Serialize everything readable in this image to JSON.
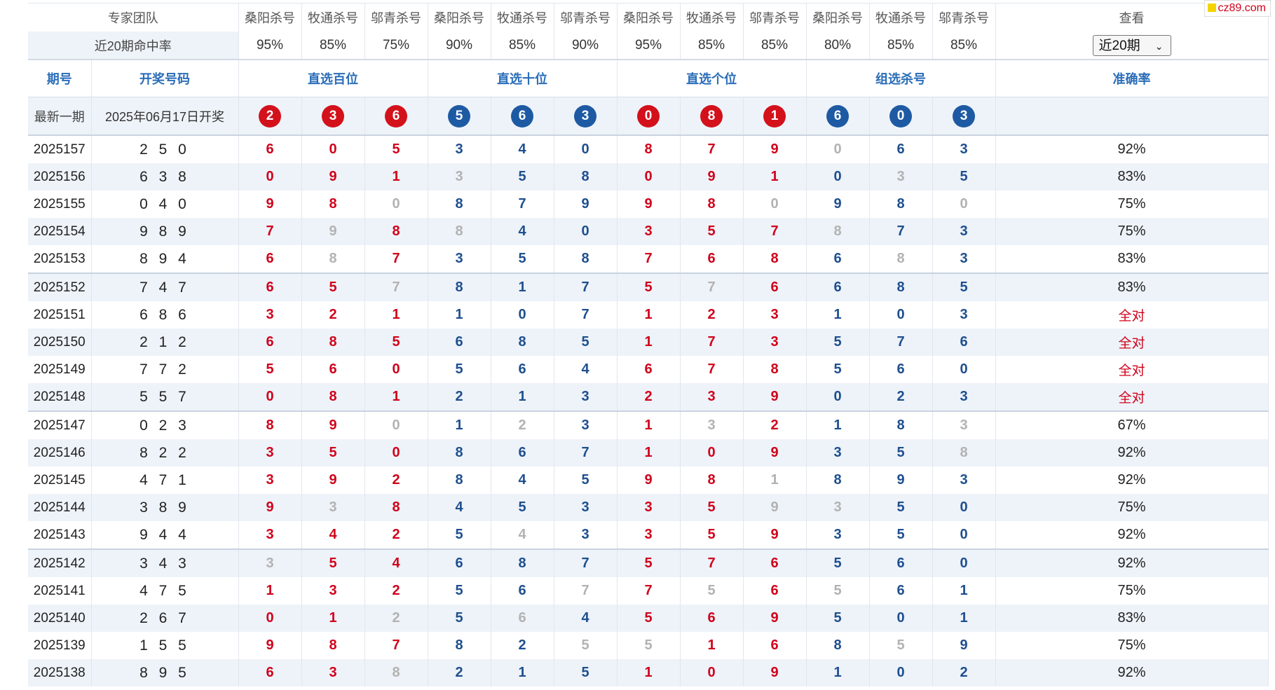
{
  "watermark": "cz89.com",
  "header": {
    "team_label": "专家团队",
    "experts": [
      "桑阳杀号",
      "牧通杀号",
      "邬青杀号",
      "桑阳杀号",
      "牧通杀号",
      "邬青杀号",
      "桑阳杀号",
      "牧通杀号",
      "邬青杀号",
      "桑阳杀号",
      "牧通杀号",
      "邬青杀号"
    ],
    "view_label": "查看",
    "hit_rate_label": "近20期命中率",
    "hit_rates": [
      "95%",
      "85%",
      "75%",
      "90%",
      "85%",
      "90%",
      "95%",
      "85%",
      "85%",
      "80%",
      "85%",
      "85%"
    ],
    "period_select": {
      "value": "近20期",
      "chevron": "chevron-down-icon"
    },
    "col_issue": "期号",
    "col_draw": "开奖号码",
    "groups": [
      "直选百位",
      "直选十位",
      "直选个位",
      "组选杀号"
    ],
    "col_accuracy": "准确率"
  },
  "latest": {
    "label": "最新一期",
    "date": "2025年06月17日开奖",
    "balls": [
      {
        "n": "2",
        "c": "r"
      },
      {
        "n": "3",
        "c": "r"
      },
      {
        "n": "6",
        "c": "r"
      },
      {
        "n": "5",
        "c": "b"
      },
      {
        "n": "6",
        "c": "b"
      },
      {
        "n": "3",
        "c": "b"
      },
      {
        "n": "0",
        "c": "r"
      },
      {
        "n": "8",
        "c": "r"
      },
      {
        "n": "1",
        "c": "r"
      },
      {
        "n": "6",
        "c": "b"
      },
      {
        "n": "0",
        "c": "b"
      },
      {
        "n": "3",
        "c": "b"
      }
    ]
  },
  "colors": {
    "red": "#d0021b",
    "blue": "#1e4f8f",
    "grey": "#b2b2b2",
    "row_alt": "#eef3f9"
  },
  "rows": [
    {
      "issue": "2025157",
      "draw": "2 5 0",
      "kills": [
        "6",
        "0",
        "5",
        "3",
        "4",
        "0",
        "8",
        "7",
        "9",
        "0",
        "6",
        "3"
      ],
      "miss": [
        9
      ],
      "acc": "92%"
    },
    {
      "issue": "2025156",
      "draw": "6 3 8",
      "kills": [
        "0",
        "9",
        "1",
        "3",
        "5",
        "8",
        "0",
        "9",
        "1",
        "0",
        "3",
        "5"
      ],
      "miss": [
        3,
        10
      ],
      "acc": "83%"
    },
    {
      "issue": "2025155",
      "draw": "0 4 0",
      "kills": [
        "9",
        "8",
        "0",
        "8",
        "7",
        "9",
        "9",
        "8",
        "0",
        "9",
        "8",
        "0"
      ],
      "miss": [
        2,
        8,
        11
      ],
      "acc": "75%"
    },
    {
      "issue": "2025154",
      "draw": "9 8 9",
      "kills": [
        "7",
        "9",
        "8",
        "8",
        "4",
        "0",
        "3",
        "5",
        "7",
        "8",
        "7",
        "3"
      ],
      "miss": [
        1,
        3,
        9
      ],
      "acc": "75%"
    },
    {
      "issue": "2025153",
      "draw": "8 9 4",
      "kills": [
        "6",
        "8",
        "7",
        "3",
        "5",
        "8",
        "7",
        "6",
        "8",
        "6",
        "8",
        "3"
      ],
      "miss": [
        1,
        10
      ],
      "acc": "83%"
    },
    {
      "issue": "2025152",
      "draw": "7 4 7",
      "kills": [
        "6",
        "5",
        "7",
        "8",
        "1",
        "7",
        "5",
        "7",
        "6",
        "6",
        "8",
        "5"
      ],
      "miss": [
        2,
        7
      ],
      "acc": "83%"
    },
    {
      "issue": "2025151",
      "draw": "6 8 6",
      "kills": [
        "3",
        "2",
        "1",
        "1",
        "0",
        "7",
        "1",
        "2",
        "3",
        "1",
        "0",
        "3"
      ],
      "miss": [],
      "acc": "全对"
    },
    {
      "issue": "2025150",
      "draw": "2 1 2",
      "kills": [
        "6",
        "8",
        "5",
        "6",
        "8",
        "5",
        "1",
        "7",
        "3",
        "5",
        "7",
        "6"
      ],
      "miss": [],
      "acc": "全对"
    },
    {
      "issue": "2025149",
      "draw": "7 7 2",
      "kills": [
        "5",
        "6",
        "0",
        "5",
        "6",
        "4",
        "6",
        "7",
        "8",
        "5",
        "6",
        "0"
      ],
      "miss": [],
      "acc": "全对"
    },
    {
      "issue": "2025148",
      "draw": "5 5 7",
      "kills": [
        "0",
        "8",
        "1",
        "2",
        "1",
        "3",
        "2",
        "3",
        "9",
        "0",
        "2",
        "3"
      ],
      "miss": [],
      "acc": "全对"
    },
    {
      "issue": "2025147",
      "draw": "0 2 3",
      "kills": [
        "8",
        "9",
        "0",
        "1",
        "2",
        "3",
        "1",
        "3",
        "2",
        "1",
        "8",
        "3"
      ],
      "miss": [
        2,
        4,
        7,
        11
      ],
      "acc": "67%"
    },
    {
      "issue": "2025146",
      "draw": "8 2 2",
      "kills": [
        "3",
        "5",
        "0",
        "8",
        "6",
        "7",
        "1",
        "0",
        "9",
        "3",
        "5",
        "8"
      ],
      "miss": [
        11
      ],
      "acc": "92%"
    },
    {
      "issue": "2025145",
      "draw": "4 7 1",
      "kills": [
        "3",
        "9",
        "2",
        "8",
        "4",
        "5",
        "9",
        "8",
        "1",
        "8",
        "9",
        "3"
      ],
      "miss": [
        8
      ],
      "acc": "92%"
    },
    {
      "issue": "2025144",
      "draw": "3 8 9",
      "kills": [
        "9",
        "3",
        "8",
        "4",
        "5",
        "3",
        "3",
        "5",
        "9",
        "3",
        "5",
        "0"
      ],
      "miss": [
        1,
        8,
        9
      ],
      "acc": "75%"
    },
    {
      "issue": "2025143",
      "draw": "9 4 4",
      "kills": [
        "3",
        "4",
        "2",
        "5",
        "4",
        "3",
        "3",
        "5",
        "9",
        "3",
        "5",
        "0"
      ],
      "miss": [
        4
      ],
      "acc": "92%"
    },
    {
      "issue": "2025142",
      "draw": "3 4 3",
      "kills": [
        "3",
        "5",
        "4",
        "6",
        "8",
        "7",
        "5",
        "7",
        "6",
        "5",
        "6",
        "0"
      ],
      "miss": [
        0
      ],
      "acc": "92%"
    },
    {
      "issue": "2025141",
      "draw": "4 7 5",
      "kills": [
        "1",
        "3",
        "2",
        "5",
        "6",
        "7",
        "7",
        "5",
        "6",
        "5",
        "6",
        "1"
      ],
      "miss": [
        5,
        7,
        9
      ],
      "acc": "75%"
    },
    {
      "issue": "2025140",
      "draw": "2 6 7",
      "kills": [
        "0",
        "1",
        "2",
        "5",
        "6",
        "4",
        "5",
        "6",
        "9",
        "5",
        "0",
        "1"
      ],
      "miss": [
        2,
        4
      ],
      "acc": "83%"
    },
    {
      "issue": "2025139",
      "draw": "1 5 5",
      "kills": [
        "9",
        "8",
        "7",
        "8",
        "2",
        "5",
        "5",
        "1",
        "6",
        "8",
        "5",
        "9"
      ],
      "miss": [
        5,
        6,
        10
      ],
      "acc": "75%"
    },
    {
      "issue": "2025138",
      "draw": "8 9 5",
      "kills": [
        "6",
        "3",
        "8",
        "2",
        "1",
        "5",
        "1",
        "0",
        "9",
        "1",
        "0",
        "2"
      ],
      "miss": [
        2
      ],
      "acc": "92%"
    }
  ]
}
